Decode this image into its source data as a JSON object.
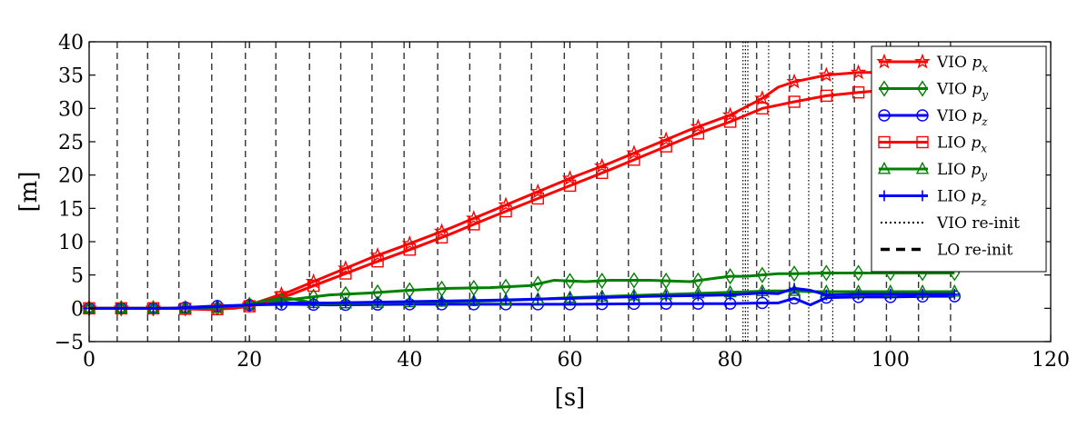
{
  "chart_data": {
    "type": "line",
    "xlabel": "[s]",
    "ylabel": "[m]",
    "xlim": [
      0,
      120
    ],
    "ylim": [
      -5,
      40
    ],
    "xticks": [
      0,
      20,
      40,
      60,
      80,
      100,
      120
    ],
    "yticks": [
      -5,
      0,
      5,
      10,
      15,
      20,
      25,
      30,
      35,
      40
    ],
    "xtick_labels": [
      "0",
      "20",
      "40",
      "60",
      "80",
      "100",
      "120"
    ],
    "ytick_labels": [
      "−5",
      "0",
      "5",
      "10",
      "15",
      "20",
      "25",
      "30",
      "35",
      "40"
    ],
    "grid": false,
    "legend_position": "top-right",
    "series": [
      {
        "name": "VIO p_x",
        "color": "#ff0000",
        "marker": "star",
        "x": [
          0,
          5,
          10,
          15,
          18,
          20,
          22,
          25,
          30,
          35,
          40,
          45,
          50,
          55,
          60,
          65,
          70,
          75,
          80,
          84,
          86,
          88,
          92,
          96,
          98
        ],
        "y": [
          0,
          0,
          0,
          0,
          0.2,
          0.5,
          1.3,
          2.5,
          5,
          7.5,
          9.7,
          12,
          14.5,
          17,
          19.5,
          21.8,
          24.3,
          26.8,
          29,
          31.5,
          33.2,
          34,
          35,
          35.4,
          35.4
        ]
      },
      {
        "name": "VIO p_y",
        "color": "#008000",
        "marker": "diamond",
        "x": [
          0,
          5,
          10,
          15,
          20,
          25,
          30,
          35,
          40,
          45,
          50,
          55,
          58,
          62,
          65,
          70,
          75,
          78,
          80,
          82,
          84,
          86,
          88,
          92,
          96,
          100,
          105,
          108
        ],
        "y": [
          0,
          0,
          0,
          0,
          0.5,
          1.3,
          2,
          2.3,
          2.7,
          3,
          3.1,
          3.4,
          4.2,
          4,
          4.2,
          4.2,
          4,
          4.5,
          4.8,
          4.8,
          5,
          5.2,
          5.2,
          5.3,
          5.3,
          5.3,
          5.3,
          5.3
        ]
      },
      {
        "name": "VIO p_z",
        "color": "#0000ff",
        "marker": "circle",
        "x": [
          0,
          5,
          10,
          15,
          20,
          25,
          30,
          40,
          50,
          60,
          70,
          80,
          84,
          86,
          88,
          90,
          92,
          96,
          100,
          105,
          108
        ],
        "y": [
          0,
          0,
          0,
          0.3,
          0.5,
          0.6,
          0.5,
          0.6,
          0.6,
          0.6,
          0.7,
          0.7,
          0.8,
          0.8,
          1.5,
          0.5,
          1.6,
          1.7,
          1.7,
          1.8,
          1.8
        ]
      },
      {
        "name": "LIO p_x",
        "color": "#ff0000",
        "marker": "square",
        "x": [
          0,
          5,
          10,
          15,
          18,
          20,
          22,
          25,
          30,
          35,
          40,
          45,
          50,
          55,
          60,
          65,
          70,
          75,
          80,
          84,
          86,
          88,
          92,
          96,
          98
        ],
        "y": [
          0,
          0,
          0,
          -0.2,
          0,
          0.3,
          1,
          2,
          4.3,
          6.6,
          8.8,
          11.1,
          13.6,
          16,
          18.4,
          20.8,
          23.3,
          25.8,
          28,
          30,
          30.5,
          31,
          31.9,
          32.4,
          32.6
        ]
      },
      {
        "name": "LIO p_y",
        "color": "#008000",
        "marker": "triangle",
        "x": [
          0,
          5,
          10,
          15,
          20,
          22,
          25,
          28,
          30,
          35,
          40,
          45,
          50,
          55,
          60,
          65,
          70,
          75,
          80,
          85,
          88,
          90,
          95,
          100,
          105,
          108
        ],
        "y": [
          0,
          0,
          0,
          0,
          0.5,
          1.2,
          1.5,
          0.8,
          0.7,
          0.8,
          0.9,
          1,
          1.1,
          1.3,
          1.6,
          1.8,
          2,
          2.2,
          2.4,
          2.6,
          2.6,
          2.5,
          2.5,
          2.5,
          2.5,
          2.5
        ]
      },
      {
        "name": "LIO p_z",
        "color": "#0000ff",
        "marker": "plus",
        "x": [
          0,
          5,
          10,
          15,
          20,
          25,
          30,
          40,
          50,
          60,
          70,
          80,
          84,
          86,
          88,
          90,
          92,
          96,
          100,
          105,
          108
        ],
        "y": [
          0,
          0,
          0,
          0.2,
          0.5,
          0.8,
          0.8,
          1,
          1.2,
          1.5,
          1.8,
          2,
          2.3,
          2.2,
          3,
          2.7,
          2,
          2.1,
          2.1,
          2.1,
          2.1
        ]
      }
    ],
    "vio_reinit": {
      "name": "VIO re-init",
      "x": [
        81.6,
        81.9,
        82.2,
        84.8,
        89.8,
        92.8
      ]
    },
    "lo_reinit": {
      "name": "LO re-init",
      "x": [
        3.5,
        7.3,
        11.2,
        15.3,
        19.5,
        23.3,
        27.5,
        31.4,
        35.3,
        39.3,
        43.5,
        47.5,
        51.3,
        55.2,
        59.3,
        63.4,
        67.3,
        71.4,
        75.4,
        79.5,
        83.3,
        87.4,
        91.4,
        95.5,
        99.5,
        103.5,
        107.5
      ]
    }
  }
}
